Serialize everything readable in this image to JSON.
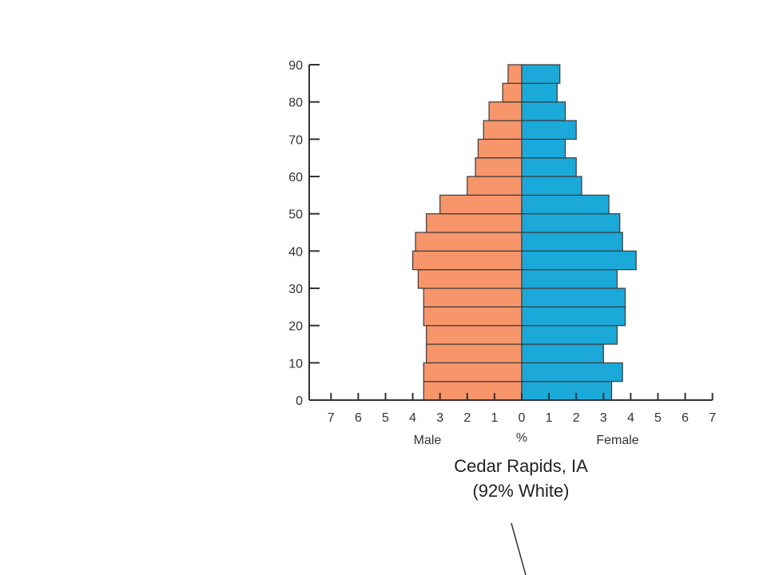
{
  "chart_data": {
    "type": "bar",
    "orientation": "horizontal",
    "title": "Cedar Rapids, IA",
    "subtitle": "(92% White)",
    "xlabel_center": "%",
    "xlabel_left": "Male",
    "xlabel_right": "Female",
    "xlim": [
      -7,
      7
    ],
    "ylim": [
      0,
      90
    ],
    "x_tick_values": [
      -7,
      -6,
      -5,
      -4,
      -3,
      -2,
      -1,
      0,
      1,
      2,
      3,
      4,
      5,
      6,
      7
    ],
    "x_tick_labels": [
      "7",
      "6",
      "5",
      "4",
      "3",
      "2",
      "1",
      "0",
      "1",
      "2",
      "3",
      "4",
      "5",
      "6",
      "7"
    ],
    "y_ticks": [
      0,
      10,
      20,
      30,
      40,
      50,
      60,
      70,
      80,
      90
    ],
    "bin_width": 5,
    "age_bins": [
      0,
      5,
      10,
      15,
      20,
      25,
      30,
      35,
      40,
      45,
      50,
      55,
      60,
      65,
      70,
      75,
      80,
      85
    ],
    "series": [
      {
        "name": "Male",
        "color": "#F7956B",
        "values": [
          3.6,
          3.6,
          3.5,
          3.5,
          3.6,
          3.6,
          3.8,
          4.0,
          3.9,
          3.5,
          3.0,
          2.0,
          1.7,
          1.6,
          1.4,
          1.2,
          0.7,
          0.5
        ]
      },
      {
        "name": "Female",
        "color": "#1AA9D9",
        "values": [
          3.3,
          3.7,
          3.0,
          3.5,
          3.8,
          3.8,
          3.5,
          4.2,
          3.7,
          3.6,
          3.2,
          2.2,
          2.0,
          1.6,
          2.0,
          1.6,
          1.3,
          1.4
        ]
      }
    ]
  }
}
